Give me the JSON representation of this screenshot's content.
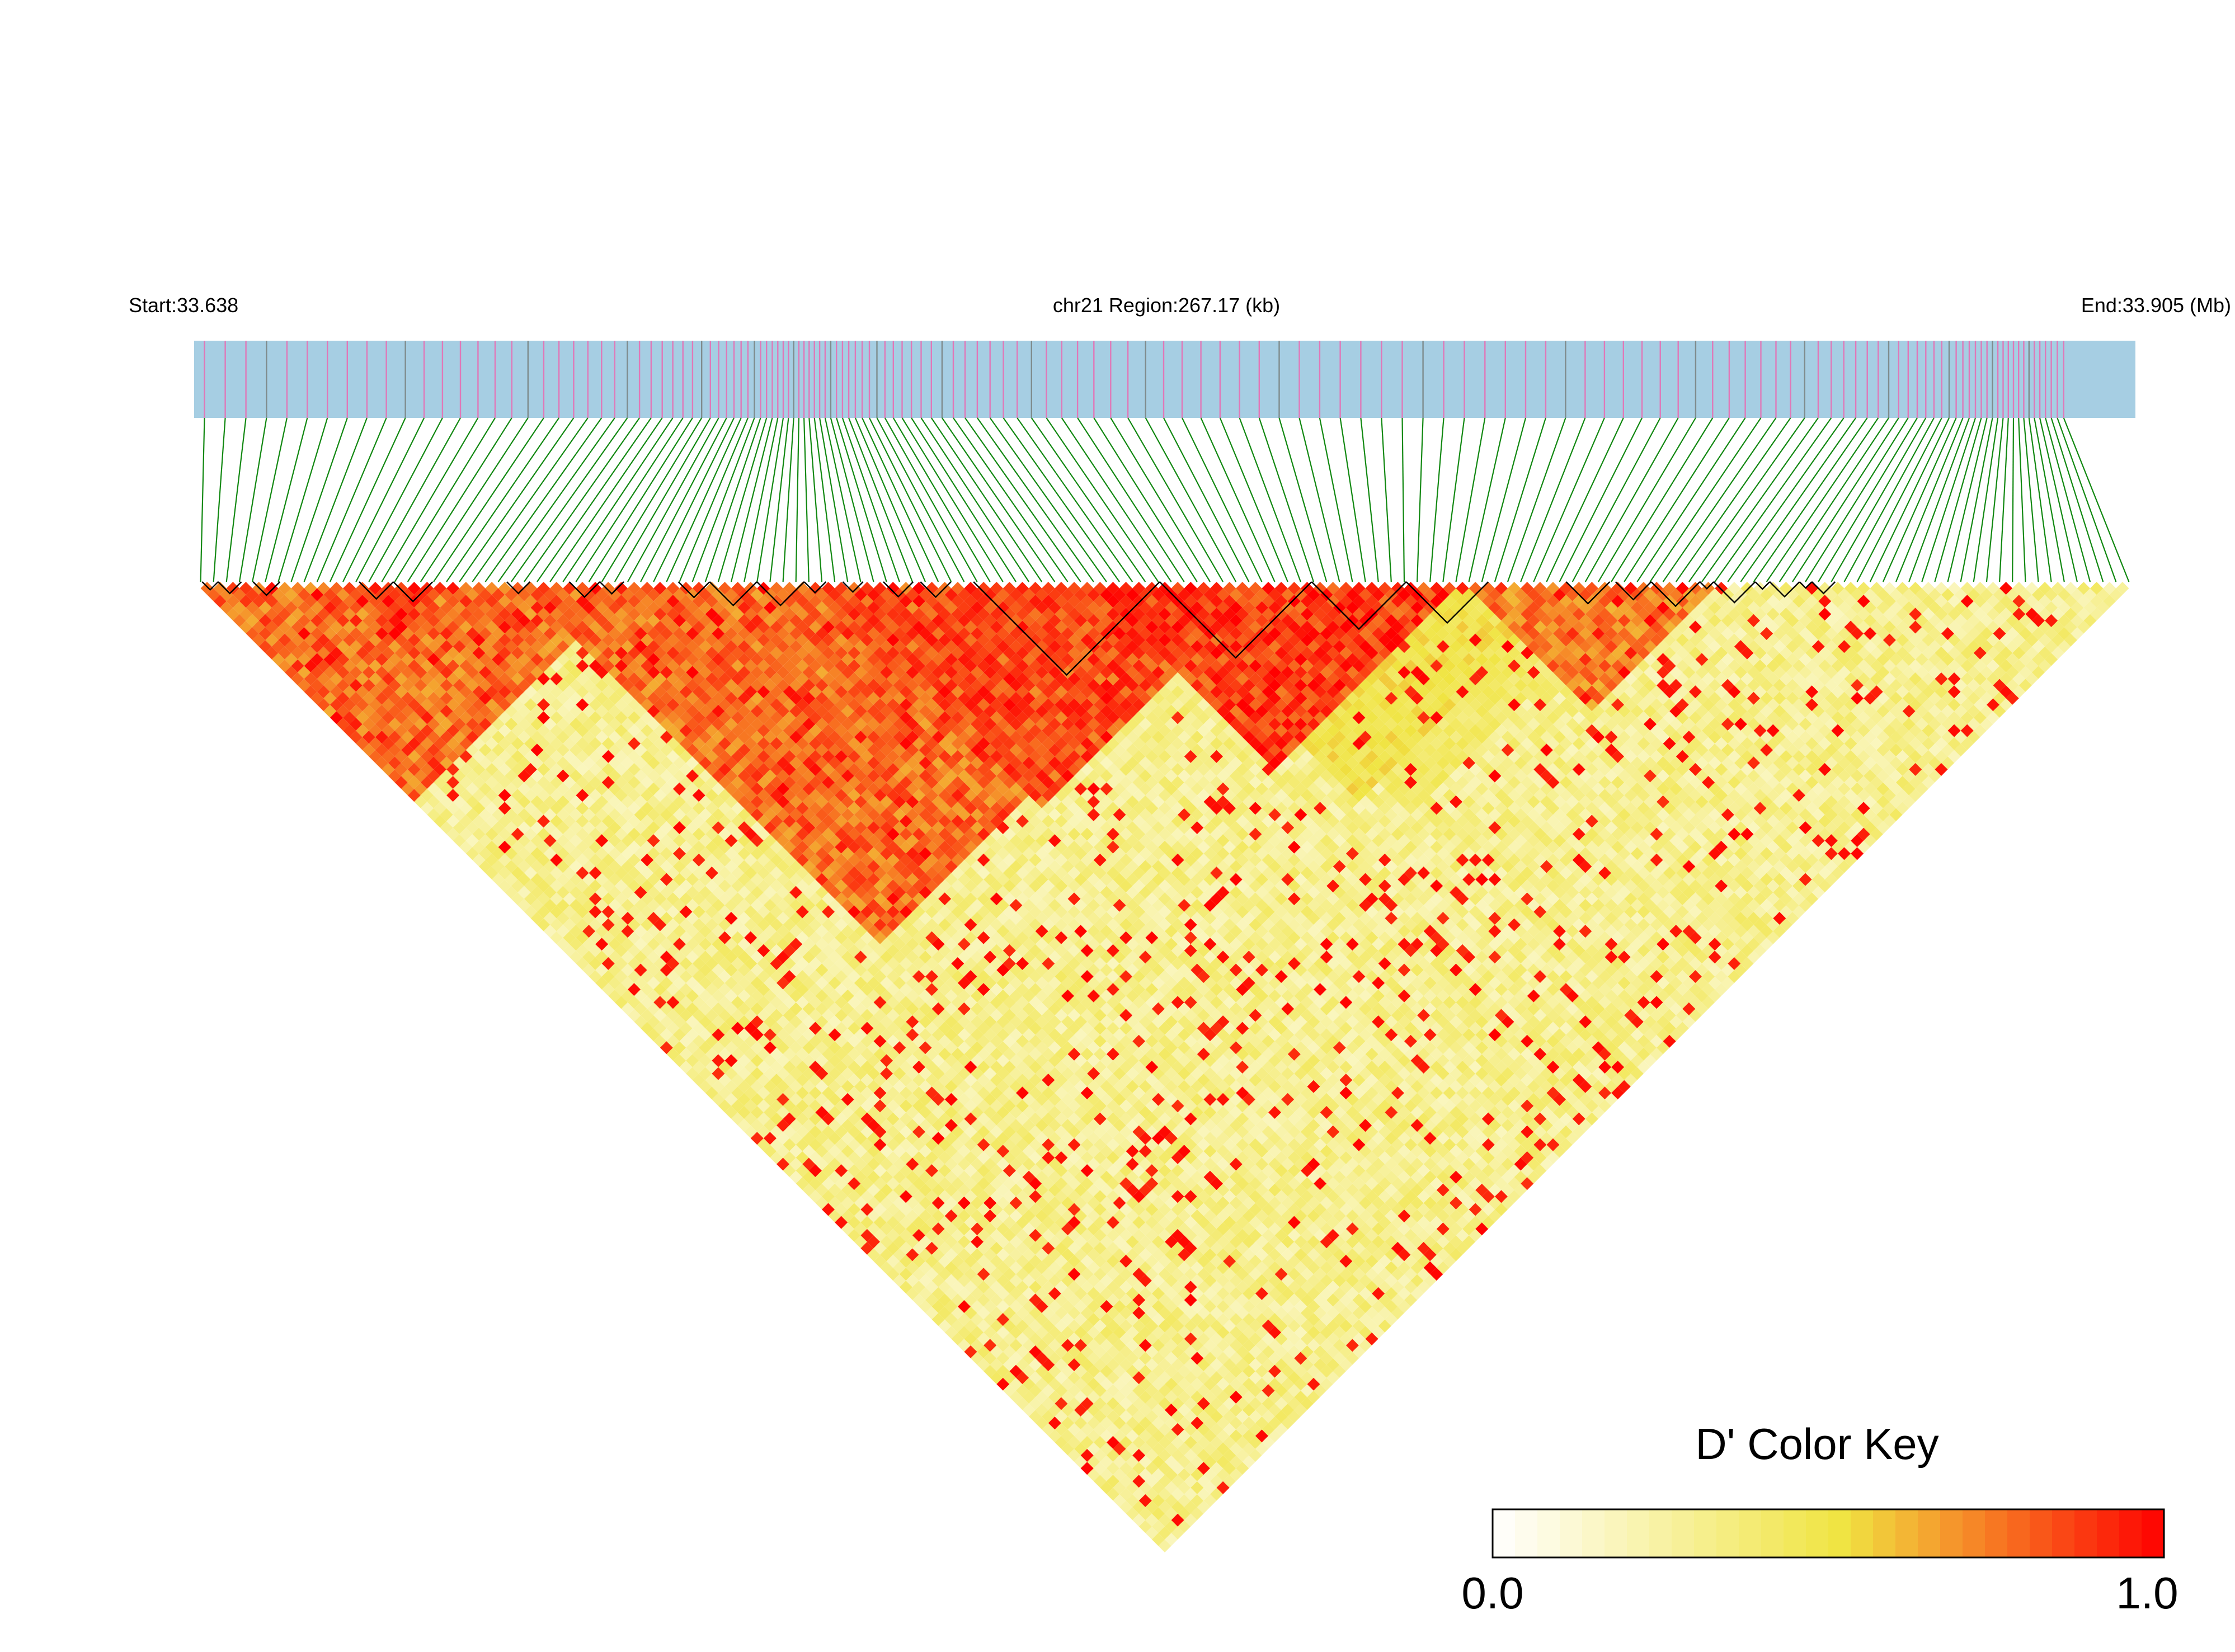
{
  "chart_data": {
    "type": "heatmap",
    "chromosome": "chr21",
    "region_start": 33.638,
    "region_end": 33.905,
    "header": {
      "start_label": "Start:33.638",
      "region_label": "chr21 Region:267.17 (kb)",
      "end_label": "End:33.905 (Mb)"
    },
    "legend": {
      "title": "D' Color Key",
      "min_label": "0.0",
      "max_label": "1.0",
      "min": 0.0,
      "max": 1.0,
      "placement": "bottom-right"
    },
    "colors": {
      "track_background": "#a6cee3",
      "snp_mark_pink": "#e078b8",
      "snp_mark_gray": "#7f8c8d",
      "connector": "#118811",
      "scale_low": "#ffffff",
      "scale_mid": "#f0e442",
      "scale_high": "#ff0000",
      "block_outline": "#000000"
    },
    "ld_blocks": [
      {
        "start": 33.6391,
        "end": 33.6413
      },
      {
        "start": 33.6413,
        "end": 33.6445
      },
      {
        "start": 33.6461,
        "end": 33.6498
      },
      {
        "start": 33.6607,
        "end": 33.6654
      },
      {
        "start": 33.6654,
        "end": 33.6708
      },
      {
        "start": 33.681,
        "end": 33.6842
      },
      {
        "start": 33.6896,
        "end": 33.6938
      },
      {
        "start": 33.6938,
        "end": 33.6971
      },
      {
        "start": 33.7046,
        "end": 33.7089
      },
      {
        "start": 33.7089,
        "end": 33.7154
      },
      {
        "start": 33.7154,
        "end": 33.7219
      },
      {
        "start": 33.7219,
        "end": 33.7249
      },
      {
        "start": 33.7272,
        "end": 33.73
      },
      {
        "start": 33.7328,
        "end": 33.7369
      },
      {
        "start": 33.7379,
        "end": 33.7421
      },
      {
        "start": 33.7452,
        "end": 33.7708
      },
      {
        "start": 33.7708,
        "end": 33.7917
      },
      {
        "start": 33.7917,
        "end": 33.8047
      },
      {
        "start": 33.8047,
        "end": 33.816
      },
      {
        "start": 33.8267,
        "end": 33.8327
      },
      {
        "start": 33.8335,
        "end": 33.8384
      },
      {
        "start": 33.8384,
        "end": 33.8451
      },
      {
        "start": 33.8451,
        "end": 33.847
      },
      {
        "start": 33.847,
        "end": 33.8527
      },
      {
        "start": 33.8527,
        "end": 33.8547
      },
      {
        "start": 33.8547,
        "end": 33.8588
      },
      {
        "start": 33.8588,
        "end": 33.8605
      },
      {
        "start": 33.8605,
        "end": 33.8637
      }
    ],
    "high_ld_regions": [
      {
        "start": 33.6388,
        "end": 33.711,
        "level": 0.85
      },
      {
        "start": 33.6685,
        "end": 33.69,
        "level": 0.97
      },
      {
        "start": 33.706,
        "end": 33.744,
        "level": 0.75
      },
      {
        "start": 33.7452,
        "end": 33.816,
        "level": 0.97
      },
      {
        "start": 33.817,
        "end": 33.864,
        "level": 0.82
      },
      {
        "start": 33.699,
        "end": 33.77,
        "level": 0.85
      },
      {
        "start": 33.722,
        "end": 33.776,
        "level": 0.92
      },
      {
        "start": 33.752,
        "end": 33.841,
        "level": 0.55
      },
      {
        "start": 33.758,
        "end": 33.852,
        "level": 0.45
      }
    ],
    "background_ld": 0.18
  }
}
